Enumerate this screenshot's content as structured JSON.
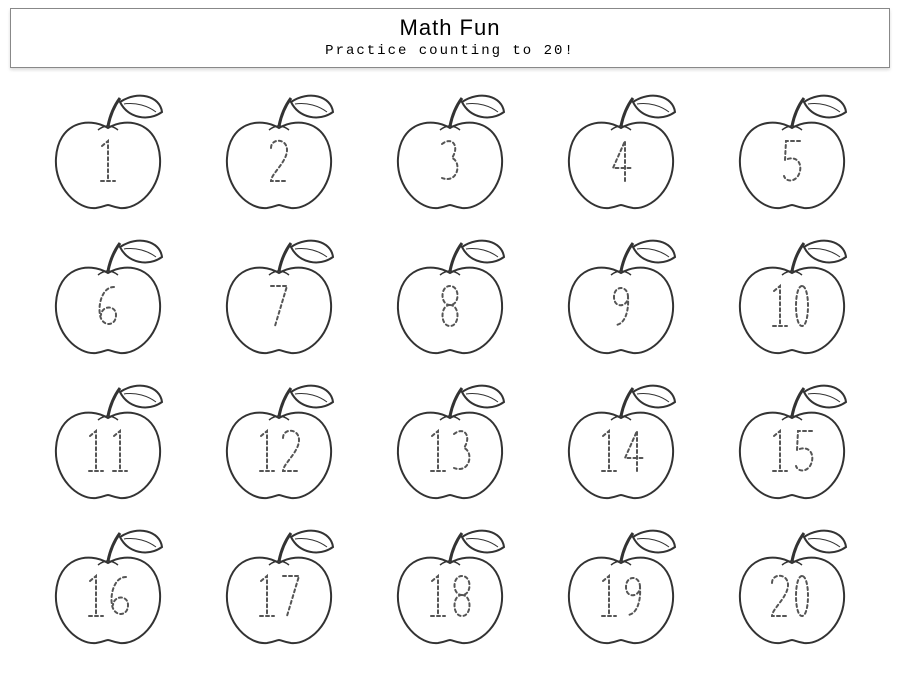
{
  "header": {
    "title": "Math Fun",
    "subtitle": "Practice counting to 20!"
  },
  "worksheet": {
    "type": "tracing-grid",
    "rows": 4,
    "cols": 5,
    "item_shape": "apple-outline",
    "stroke_color": "#333333",
    "background_color": "#ffffff",
    "number_style": "dashed-trace",
    "number_color": "#555555",
    "number_fontsize": 40,
    "numbers": [
      1,
      2,
      3,
      4,
      5,
      6,
      7,
      8,
      9,
      10,
      11,
      12,
      13,
      14,
      15,
      16,
      17,
      18,
      19,
      20
    ]
  }
}
